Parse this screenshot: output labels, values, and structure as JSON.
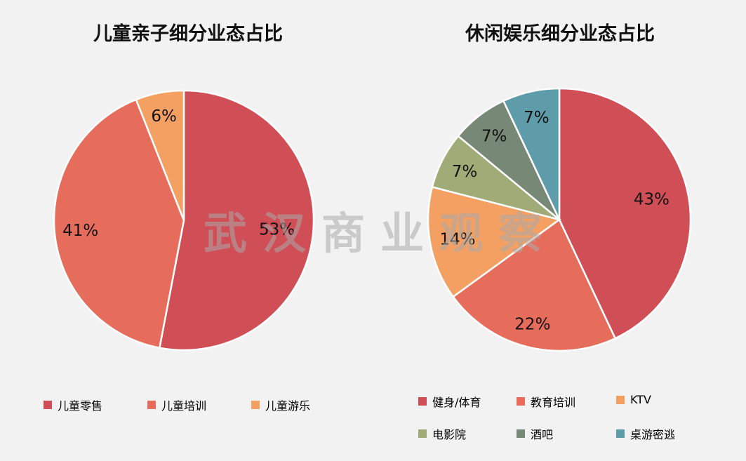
{
  "watermark": "武汉商业观察",
  "chart_data": [
    {
      "type": "pie",
      "title": "儿童亲子细分业态占比",
      "labels": [
        "儿童零售",
        "儿童培训",
        "儿童游乐"
      ],
      "values": [
        53,
        41,
        6
      ],
      "value_labels": [
        "53%",
        "41%",
        "6%"
      ],
      "colors": [
        "#d04e55",
        "#e66d5b",
        "#f4a062"
      ],
      "legend_position": "bottom"
    },
    {
      "type": "pie",
      "title": "休闲娱乐细分业态占比",
      "labels": [
        "健身/体育",
        "教育培训",
        "KTV",
        "电影院",
        "酒吧",
        "桌游密逃"
      ],
      "values": [
        43,
        22,
        14,
        7,
        7,
        7
      ],
      "value_labels": [
        "43%",
        "22%",
        "14%",
        "7%",
        "7%",
        "7%"
      ],
      "colors": [
        "#d04e55",
        "#e66d5b",
        "#f4a062",
        "#9fac78",
        "#778877",
        "#5f9ca9"
      ],
      "legend_position": "bottom"
    }
  ]
}
